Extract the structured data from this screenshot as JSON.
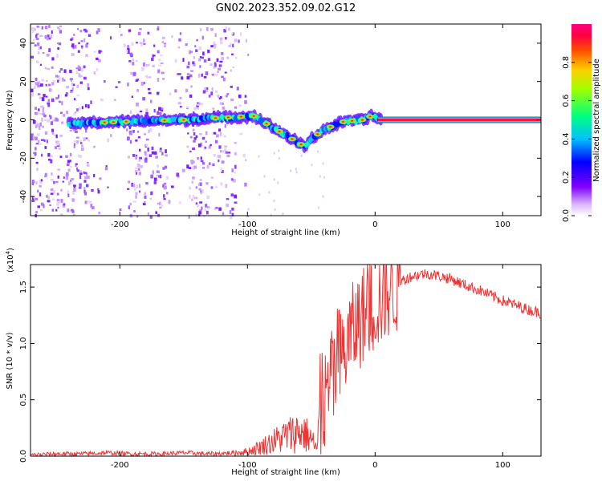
{
  "title": "GN02.2023.352.09.02.G12",
  "chart_data": [
    {
      "type": "heatmap",
      "name": "spectrogram",
      "xlabel": "Height of straight line (km)",
      "ylabel": "Frequency (Hz)",
      "xlim": [
        -270,
        130
      ],
      "ylim": [
        -50,
        50
      ],
      "x_ticks": [
        -200,
        -100,
        0,
        100
      ],
      "y_ticks": [
        -40,
        -20,
        0,
        20,
        40
      ],
      "colorbar": {
        "label": "Normalized spectral amplitude",
        "range": [
          0.0,
          1.0
        ],
        "ticks": [
          0.0,
          0.2,
          0.4,
          0.6,
          0.8
        ],
        "tick_labels": [
          "0.0",
          "0.2",
          "0.4",
          "0.6",
          "0.8"
        ]
      },
      "dominant_line": {
        "description_points": [
          {
            "x": -240,
            "y": -2
          },
          {
            "x": -200,
            "y": -1
          },
          {
            "x": -150,
            "y": 0
          },
          {
            "x": -110,
            "y": 1.5
          },
          {
            "x": -95,
            "y": 2
          },
          {
            "x": -80,
            "y": -4
          },
          {
            "x": -70,
            "y": -8
          },
          {
            "x": -55,
            "y": -14
          },
          {
            "x": -50,
            "y": -10
          },
          {
            "x": -40,
            "y": -5
          },
          {
            "x": -25,
            "y": -1
          },
          {
            "x": -10,
            "y": 0
          },
          {
            "x": -3,
            "y": 2
          },
          {
            "x": 5,
            "y": 0
          },
          {
            "x": 130,
            "y": 0
          }
        ]
      },
      "grid": false
    },
    {
      "type": "line",
      "name": "snr",
      "xlabel": "Height of straight line (km)",
      "ylabel": "SNR (10 * v/v)",
      "y_multiplier_label": "(x10",
      "y_multiplier_exp": "4",
      "y_multiplier_close": ")",
      "xlim": [
        -270,
        130
      ],
      "ylim": [
        0.0,
        1.7
      ],
      "x_ticks": [
        -200,
        -100,
        0,
        100
      ],
      "y_ticks": [
        0.0,
        0.5,
        1.0,
        1.5
      ],
      "y_tick_labels": [
        "0.0",
        "0.5",
        "1.0",
        "1.5"
      ],
      "series": [
        {
          "color": "#ee3333",
          "x": [
            -270,
            -250,
            -230,
            -210,
            -190,
            -170,
            -150,
            -130,
            -110,
            -100,
            -90,
            -80,
            -70,
            -60,
            -55,
            -50,
            -45,
            -40,
            -35,
            -30,
            -25,
            -20,
            -15,
            -10,
            -5,
            0,
            5,
            10,
            15,
            20,
            25,
            30,
            40,
            50,
            60,
            70,
            80,
            90,
            100,
            110,
            120,
            130
          ],
          "values": [
            0.01,
            0.02,
            0.02,
            0.03,
            0.02,
            0.02,
            0.03,
            0.02,
            0.03,
            0.04,
            0.08,
            0.13,
            0.18,
            0.22,
            0.2,
            0.15,
            0.05,
            0.45,
            0.65,
            0.75,
            0.9,
            1.05,
            1.15,
            1.25,
            1.3,
            1.35,
            1.4,
            1.48,
            1.5,
            1.55,
            1.58,
            1.6,
            1.62,
            1.6,
            1.57,
            1.52,
            1.48,
            1.43,
            1.38,
            1.34,
            1.3,
            1.27
          ]
        }
      ],
      "grid": false
    }
  ]
}
